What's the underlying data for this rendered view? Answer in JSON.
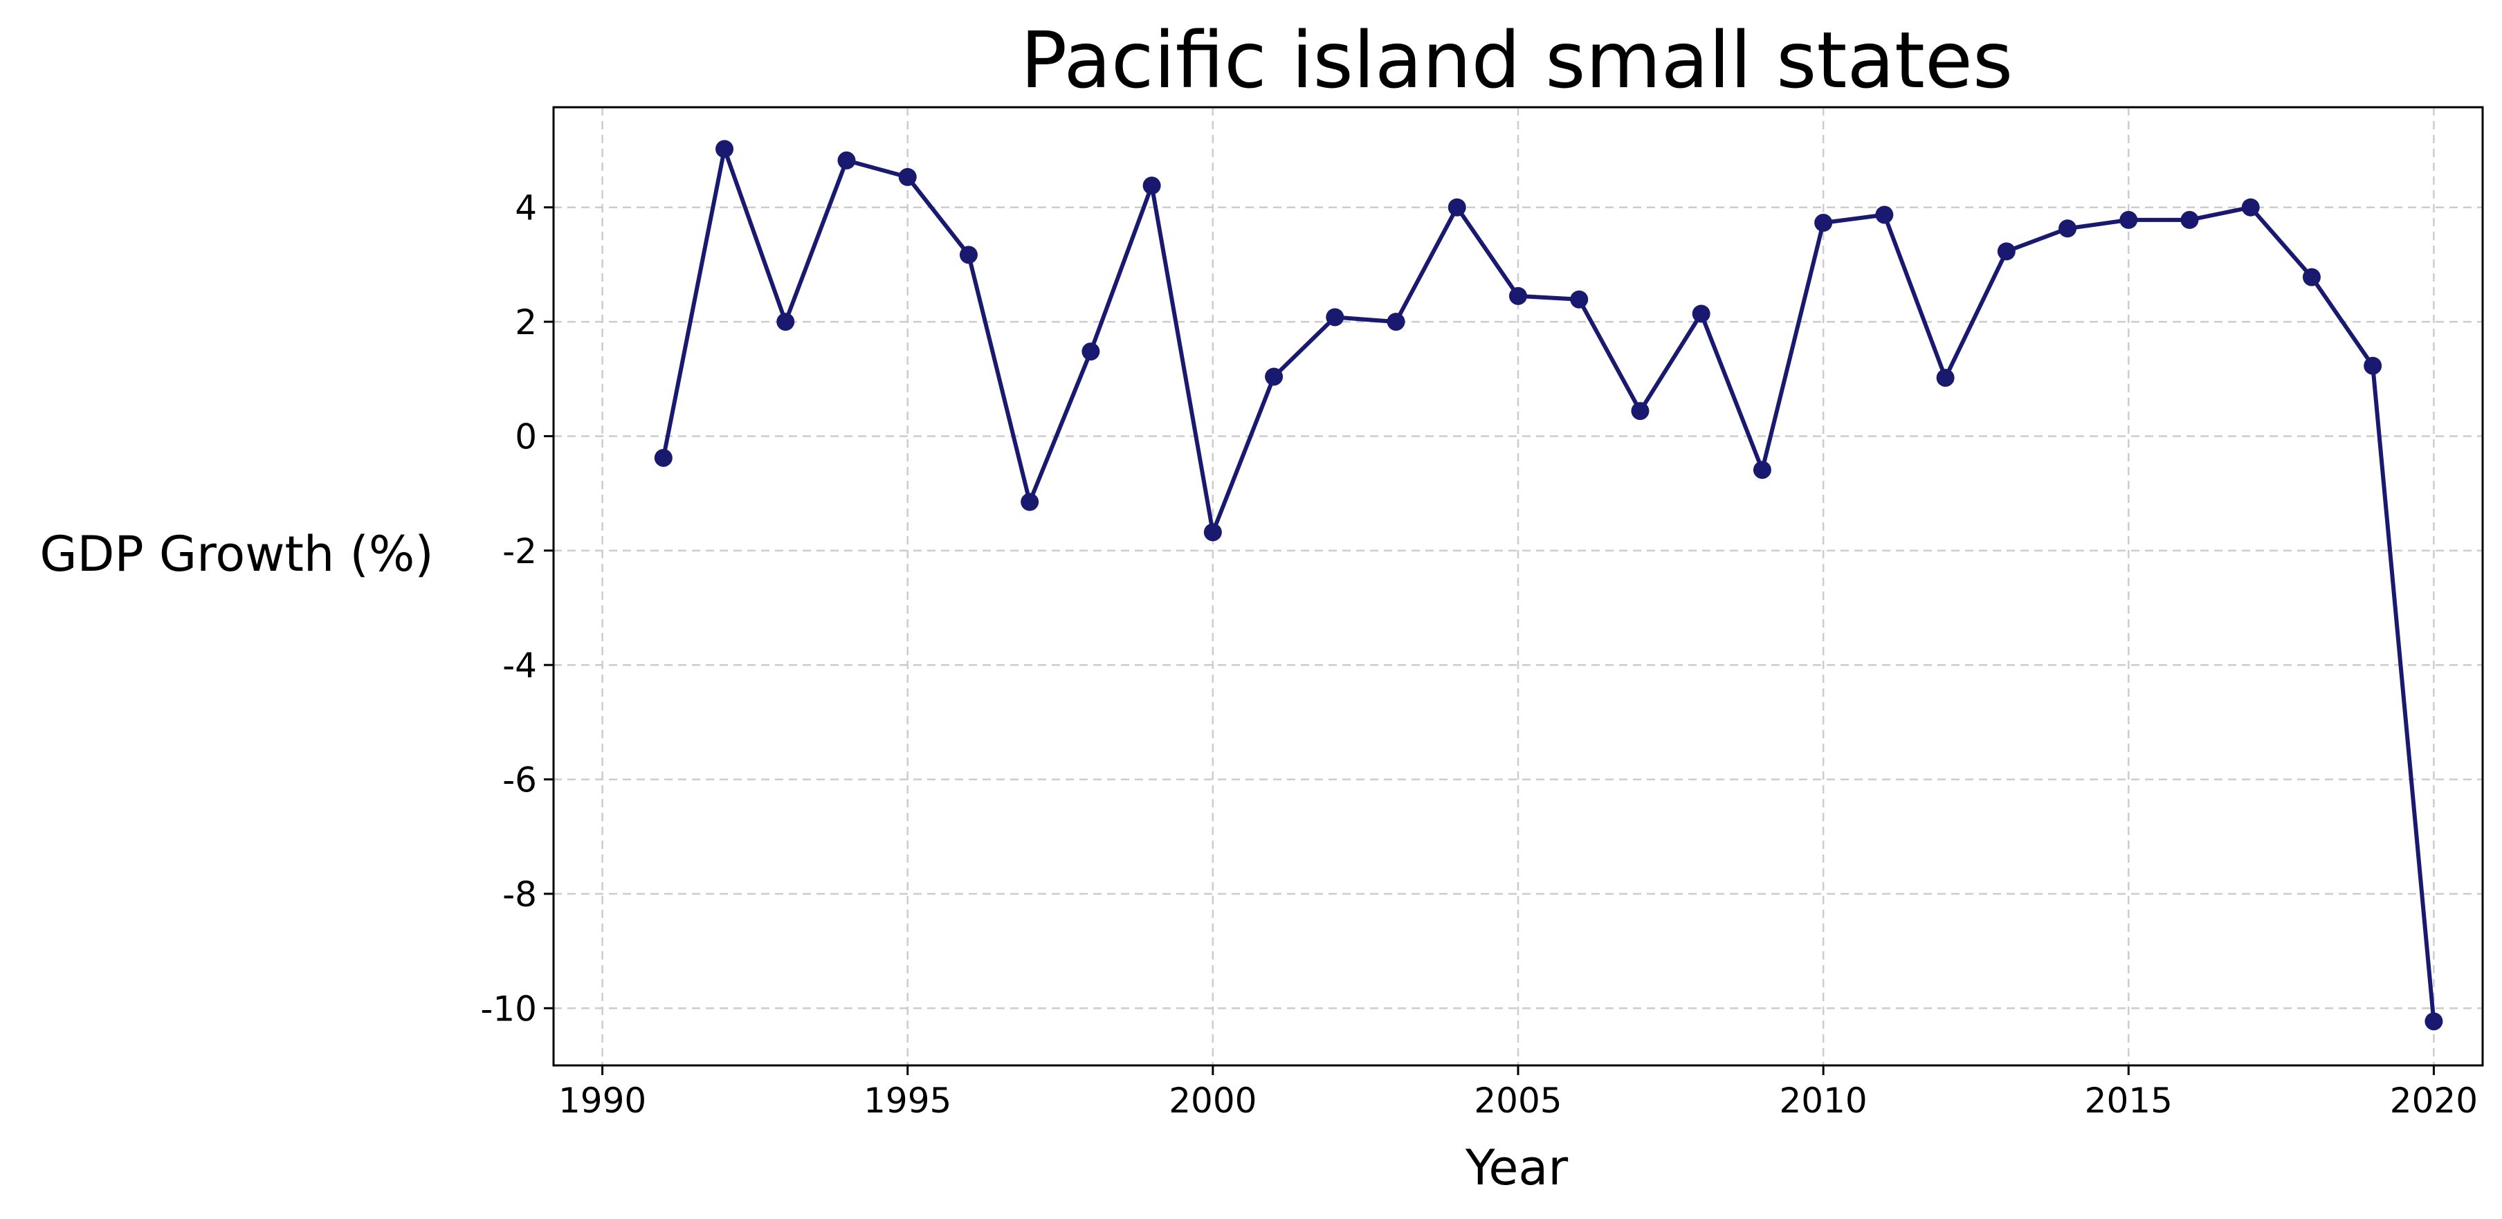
{
  "chart_data": {
    "type": "line",
    "title": "Pacific island small states",
    "xlabel": "Year",
    "ylabel": "GDP Growth (%)",
    "xlim": [
      1989.2,
      2020.8
    ],
    "ylim": [
      -11,
      5.75
    ],
    "xticks": [
      1990,
      1995,
      2000,
      2005,
      2010,
      2015,
      2020
    ],
    "xtick_labels": [
      "1990",
      "1995",
      "2000",
      "2005",
      "2010",
      "2015",
      "2020"
    ],
    "yticks": [
      4,
      2,
      0,
      -2,
      -4,
      -6,
      -8,
      -10
    ],
    "ytick_labels": [
      "4",
      "2",
      "0",
      "-2",
      "-4",
      "-6",
      "-8",
      "-10"
    ],
    "grid": true,
    "colors": {
      "line": "#191970",
      "marker": "#191970"
    },
    "series": [
      {
        "x": [
          1991,
          1992,
          1993,
          1994,
          1995,
          1996,
          1997,
          1998,
          1999,
          2000,
          2001,
          2002,
          2003,
          2004,
          2005,
          2006,
          2007,
          2008,
          2009,
          2010,
          2011,
          2012,
          2013,
          2014,
          2015,
          2016,
          2017,
          2018,
          2019,
          2020
        ],
        "values": [
          -0.38,
          5.02,
          2.0,
          4.82,
          4.53,
          3.17,
          -1.15,
          1.48,
          4.38,
          -1.68,
          1.04,
          2.08,
          2.0,
          4.0,
          2.45,
          2.39,
          0.44,
          2.14,
          -0.59,
          3.73,
          3.87,
          1.02,
          3.23,
          3.63,
          3.78,
          3.78,
          4.0,
          2.78,
          1.23,
          -10.23
        ]
      }
    ]
  }
}
